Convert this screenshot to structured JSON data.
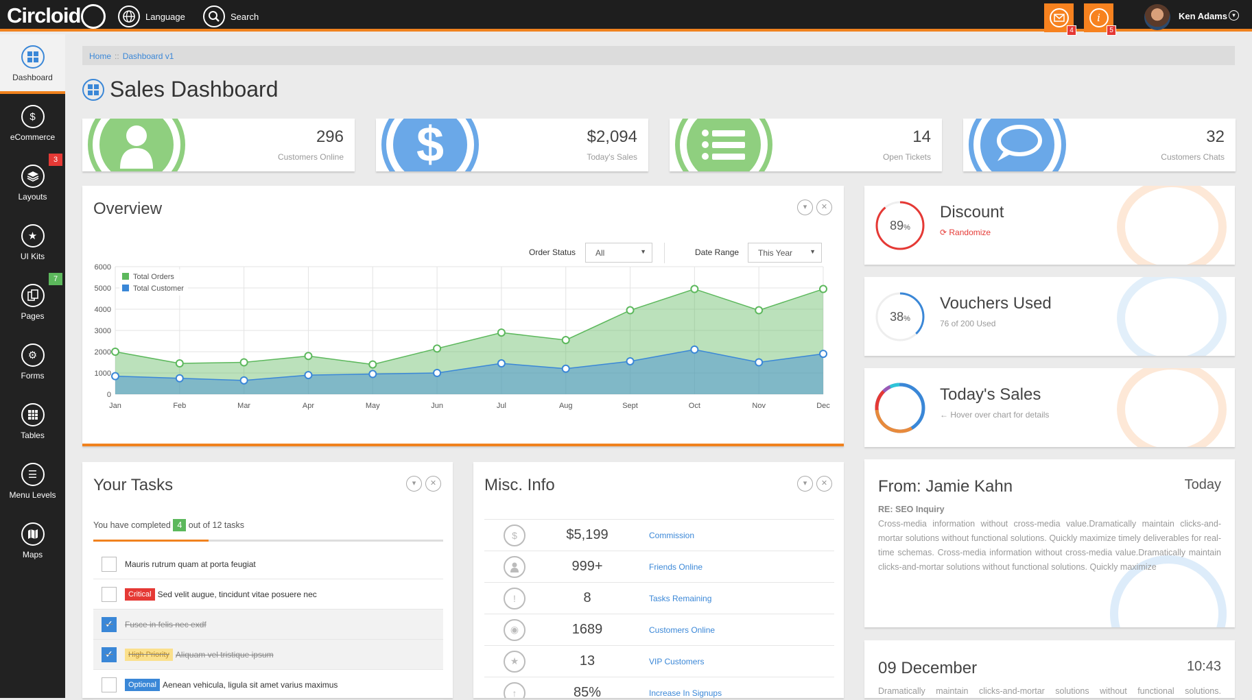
{
  "topbar": {
    "logo": "Circloid",
    "language": "Language",
    "search": "Search",
    "mail_count": "4",
    "info_count": "5",
    "user_name": "Ken Adams"
  },
  "sidebar": {
    "items": [
      {
        "label": "Dashboard",
        "badge": ""
      },
      {
        "label": "eCommerce",
        "badge": ""
      },
      {
        "label": "Layouts",
        "badge": "3"
      },
      {
        "label": "UI Kits",
        "badge": ""
      },
      {
        "label": "Pages",
        "badge": "7"
      },
      {
        "label": "Forms",
        "badge": ""
      },
      {
        "label": "Tables",
        "badge": ""
      },
      {
        "label": "Menu Levels",
        "badge": ""
      },
      {
        "label": "Maps",
        "badge": ""
      }
    ]
  },
  "breadcrumb": {
    "home": "Home",
    "sep": "::",
    "current": "Dashboard v1"
  },
  "page_title": "Sales Dashboard",
  "stats": [
    {
      "value": "296",
      "label": "Customers Online",
      "color": "#8fcf7f"
    },
    {
      "value": "$2,094",
      "label": "Today's Sales",
      "color": "#6aa8e8"
    },
    {
      "value": "14",
      "label": "Open Tickets",
      "color": "#8fcf7f"
    },
    {
      "value": "32",
      "label": "Customers Chats",
      "color": "#6aa8e8"
    }
  ],
  "overview": {
    "title": "Overview",
    "order_status_label": "Order Status",
    "order_status_value": "All",
    "date_range_label": "Date Range",
    "date_range_value": "This Year"
  },
  "chart_data": {
    "type": "area",
    "categories": [
      "Jan",
      "Feb",
      "Mar",
      "Apr",
      "May",
      "Jun",
      "Jul",
      "Aug",
      "Sept",
      "Oct",
      "Nov",
      "Dec"
    ],
    "ylim": [
      0,
      6000
    ],
    "yticks": [
      "0",
      "1000",
      "2000",
      "3000",
      "4000",
      "5000",
      "6000"
    ],
    "legend_position": "top-left",
    "grid": true,
    "series": [
      {
        "name": "Total Orders",
        "color": "#5cb85c",
        "values": [
          2000,
          1450,
          1500,
          1800,
          1400,
          2150,
          2900,
          2550,
          3950,
          4950,
          3950,
          4950
        ]
      },
      {
        "name": "Total Customer",
        "color": "#3a87d7",
        "values": [
          850,
          750,
          650,
          900,
          950,
          1000,
          1450,
          1200,
          1550,
          2100,
          1500,
          1900
        ]
      }
    ]
  },
  "kpis": [
    {
      "title": "Discount",
      "sub": "Randomize",
      "pct": "89",
      "unit": "%",
      "color": "#e53935",
      "wm": "#f7b27a"
    },
    {
      "title": "Vouchers Used",
      "sub": "76 of 200 Used",
      "pct": "38",
      "unit": "%",
      "color": "#3a87d7",
      "wm": "#9ec9f0"
    },
    {
      "title": "Today's Sales",
      "sub": "Hover over chart for details",
      "pct": "",
      "unit": "",
      "color": "#3a87d7",
      "wm": "#f7b27a"
    }
  ],
  "tasks": {
    "title": "Your Tasks",
    "summary_prefix": "You have completed",
    "completed": "4",
    "summary_suffix": "out of 12 tasks",
    "progress": 0.33,
    "items": [
      {
        "tag": "",
        "text": "Mauris rutrum quam at porta feugiat",
        "done": false
      },
      {
        "tag": "Critical",
        "text": "Sed velit augue, tincidunt vitae posuere nec",
        "done": false
      },
      {
        "tag": "",
        "text": "Fusce in felis nec exdf",
        "done": true
      },
      {
        "tag": "High Priority",
        "text": "Aliquam vel tristique ipsum",
        "done": true
      },
      {
        "tag": "Optional",
        "text": "Aenean vehicula, ligula sit amet varius maximus",
        "done": false
      }
    ]
  },
  "misc": {
    "title": "Misc. Info",
    "rows": [
      {
        "icon": "dollar-icon",
        "value": "$5,199",
        "label": "Commission"
      },
      {
        "icon": "user-icon",
        "value": "999+",
        "label": "Friends Online"
      },
      {
        "icon": "alert-icon",
        "value": "8",
        "label": "Tasks Remaining"
      },
      {
        "icon": "eye-icon",
        "value": "1689",
        "label": "Customers Online"
      },
      {
        "icon": "star-icon",
        "value": "13",
        "label": "VIP Customers"
      },
      {
        "icon": "arrow-up-icon",
        "value": "85%",
        "label": "Increase In Signups"
      }
    ]
  },
  "mail": {
    "from": "From: Jamie Kahn",
    "when": "Today",
    "subject": "RE: SEO Inquiry",
    "body": "Cross-media information without cross-media value.Dramatically maintain clicks-and-mortar solutions without functional solutions. Quickly maximize timely deliverables for real-time schemas. Cross-media information without cross-media value.Dramatically maintain clicks-and-mortar solutions without functional solutions. Quickly maximize"
  },
  "event": {
    "date": "09 December",
    "time": "10:43",
    "body": "Dramatically maintain clicks-and-mortar solutions without functional solutions."
  }
}
